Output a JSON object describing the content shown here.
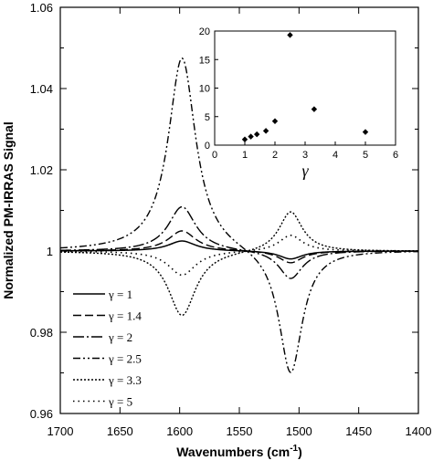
{
  "chart_data": [
    {
      "type": "line",
      "title": "",
      "xlabel": "Wavenumbers (cm",
      "xlabel_sup": "-1",
      "xlabel_end": ")",
      "ylabel": "Normalized PM-IRRAS Signal",
      "xlim": [
        1700,
        1400
      ],
      "ylim": [
        0.96,
        1.06
      ],
      "x_ticks": [
        "1700",
        "1650",
        "1600",
        "1550",
        "1500",
        "1450",
        "1400"
      ],
      "y_ticks": [
        "0.96",
        "0.98",
        "1",
        "1.02",
        "1.04",
        "1.06"
      ],
      "legend_position": "bottom-left",
      "grid": false,
      "band_centers_cm1": [
        1598,
        1507
      ],
      "series": [
        {
          "name": "γ = 1",
          "dash": "solid",
          "peaks": [
            0.0025,
            -0.002
          ]
        },
        {
          "name": "γ = 1.4",
          "dash": "long-dash",
          "peaks": [
            0.005,
            -0.003
          ]
        },
        {
          "name": "γ = 2",
          "dash": "dash-dot",
          "peaks": [
            0.011,
            -0.007
          ]
        },
        {
          "name": "γ = 2.5",
          "dash": "dash-dot-dot",
          "peaks": [
            0.048,
            -0.031
          ]
        },
        {
          "name": "γ = 3.3",
          "dash": "dotted",
          "peaks": [
            -0.016,
            0.01
          ]
        },
        {
          "name": "γ = 5",
          "dash": "sparse-dotted",
          "peaks": [
            -0.006,
            0.004
          ]
        }
      ]
    },
    {
      "type": "scatter",
      "title": "",
      "xlabel": "γ",
      "ylabel": "",
      "xlim": [
        0,
        6
      ],
      "ylim": [
        0,
        20
      ],
      "x_ticks": [
        "0",
        "1",
        "2",
        "3",
        "4",
        "5",
        "6"
      ],
      "y_ticks": [
        "0",
        "5",
        "10",
        "15",
        "20"
      ],
      "points": [
        {
          "x": 1.0,
          "y": 1.0
        },
        {
          "x": 1.2,
          "y": 1.5
        },
        {
          "x": 1.4,
          "y": 1.9
        },
        {
          "x": 1.7,
          "y": 2.5
        },
        {
          "x": 2.0,
          "y": 4.2
        },
        {
          "x": 2.5,
          "y": 19.3
        },
        {
          "x": 3.3,
          "y": 6.3
        },
        {
          "x": 5.0,
          "y": 2.3
        }
      ]
    }
  ]
}
